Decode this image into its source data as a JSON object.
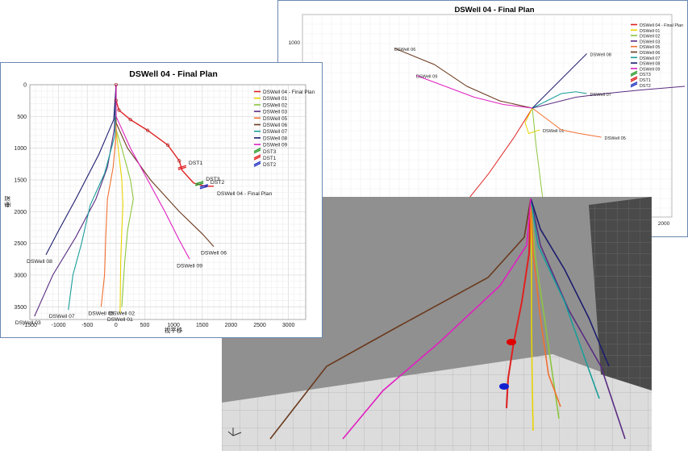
{
  "chart_data": [
    {
      "type": "line",
      "view": "vertical-section",
      "title": "DSWell 04 - Final Plan",
      "xlabel": "视平移",
      "ylabel": "垂深",
      "xticks": [
        "-1500",
        "-1000",
        "-500",
        "0",
        "500",
        "1000",
        "1500",
        "2000",
        "2500",
        "3000"
      ],
      "yticks": [
        "0",
        "500",
        "1000",
        "1500",
        "2000",
        "2500",
        "3000",
        "3500"
      ],
      "xlim": [
        -1500,
        3300
      ],
      "ylim": [
        0,
        3700
      ],
      "y_inverted": true,
      "grid": true,
      "legend_position": "top-right",
      "legend": [
        {
          "label": "DSWell 04 - Final Plan",
          "color": "#e02020",
          "kind": "line"
        },
        {
          "label": "DSWell 01",
          "color": "#e8d400",
          "kind": "line"
        },
        {
          "label": "DSWell 02",
          "color": "#8cc63f",
          "kind": "line"
        },
        {
          "label": "DSWell 03",
          "color": "#5a2d82",
          "kind": "line"
        },
        {
          "label": "DSWell 05",
          "color": "#f07030",
          "kind": "line"
        },
        {
          "label": "DSWell 06",
          "color": "#6b3a1e",
          "kind": "line"
        },
        {
          "label": "DSWell 07",
          "color": "#1a9e9a",
          "kind": "line"
        },
        {
          "label": "DSWell 08",
          "color": "#1c1c6e",
          "kind": "line"
        },
        {
          "label": "DSWell 09",
          "color": "#e020c0",
          "kind": "line"
        },
        {
          "label": "DST3",
          "color": "#2a9a2a",
          "kind": "target"
        },
        {
          "label": "DST1",
          "color": "#e02020",
          "kind": "target"
        },
        {
          "label": "DST2",
          "color": "#2030c0",
          "kind": "target"
        }
      ],
      "series": [
        {
          "name": "DSWell 04 - Final Plan",
          "color": "#e02020",
          "label": "DSWell 04 - Final Plan",
          "points": [
            [
              0,
              0
            ],
            [
              0,
              250
            ],
            [
              50,
              400
            ],
            [
              250,
              550
            ],
            [
              550,
              720
            ],
            [
              900,
              950
            ],
            [
              1100,
              1200
            ],
            [
              1150,
              1350
            ],
            [
              1350,
              1550
            ],
            [
              1550,
              1600
            ],
            [
              1700,
              1600
            ]
          ]
        },
        {
          "name": "DSWell 01",
          "color": "#e8d400",
          "label": "DSWell 01",
          "points": [
            [
              0,
              0
            ],
            [
              0,
              700
            ],
            [
              50,
              1100
            ],
            [
              100,
              1500
            ],
            [
              120,
              1900
            ],
            [
              100,
              2300
            ],
            [
              80,
              2800
            ],
            [
              70,
              3600
            ]
          ]
        },
        {
          "name": "DSWell 02",
          "color": "#8cc63f",
          "label": "DSWell 02",
          "points": [
            [
              0,
              0
            ],
            [
              0,
              700
            ],
            [
              100,
              1000
            ],
            [
              250,
              1500
            ],
            [
              300,
              1800
            ],
            [
              200,
              2300
            ],
            [
              150,
              2800
            ],
            [
              100,
              3500
            ]
          ]
        },
        {
          "name": "DSWell 03",
          "color": "#5a2d82",
          "label": "DSWell 03",
          "points": [
            [
              0,
              0
            ],
            [
              -30,
              700
            ],
            [
              -150,
              1300
            ],
            [
              -350,
              1800
            ],
            [
              -700,
              2400
            ],
            [
              -1100,
              3000
            ],
            [
              -1420,
              3650
            ]
          ]
        },
        {
          "name": "DSWell 05",
          "color": "#f07030",
          "label": "DSWell 05",
          "points": [
            [
              0,
              0
            ],
            [
              0,
              800
            ],
            [
              -50,
              1300
            ],
            [
              -150,
              1800
            ],
            [
              -180,
              2400
            ],
            [
              -200,
              3000
            ],
            [
              -260,
              3500
            ]
          ]
        },
        {
          "name": "DSWell 06",
          "color": "#6b3a1e",
          "label": "DSWell 06",
          "points": [
            [
              0,
              0
            ],
            [
              0,
              600
            ],
            [
              200,
              1000
            ],
            [
              600,
              1500
            ],
            [
              1100,
              2000
            ],
            [
              1500,
              2350
            ],
            [
              1700,
              2550
            ]
          ]
        },
        {
          "name": "DSWell 07",
          "color": "#1a9e9a",
          "label": "DSWell 07",
          "points": [
            [
              0,
              0
            ],
            [
              -20,
              800
            ],
            [
              -200,
              1400
            ],
            [
              -450,
              1900
            ],
            [
              -600,
              2500
            ],
            [
              -750,
              3000
            ],
            [
              -830,
              3550
            ]
          ]
        },
        {
          "name": "DSWell 08",
          "color": "#1c1c6e",
          "label": "DSWell 08",
          "points": [
            [
              0,
              0
            ],
            [
              -40,
              550
            ],
            [
              -300,
              1100
            ],
            [
              -700,
              1800
            ],
            [
              -1000,
              2300
            ],
            [
              -1220,
              2680
            ]
          ]
        },
        {
          "name": "DSWell 09",
          "color": "#e020c0",
          "label": "DSWell 09",
          "points": [
            [
              0,
              0
            ],
            [
              0,
              500
            ],
            [
              250,
              1000
            ],
            [
              550,
              1500
            ],
            [
              850,
              2000
            ],
            [
              1100,
              2450
            ],
            [
              1280,
              2750
            ]
          ]
        }
      ],
      "targets": [
        {
          "name": "DST1",
          "x": 1150,
          "y": 1300,
          "color": "#e02020"
        },
        {
          "name": "DST3",
          "x": 1450,
          "y": 1550,
          "color": "#2a9a2a"
        },
        {
          "name": "DST2",
          "x": 1530,
          "y": 1600,
          "color": "#2030c0"
        }
      ]
    },
    {
      "type": "line",
      "view": "plan",
      "title": "DSWell 04 - Final Plan",
      "yticks": [
        "1000"
      ],
      "xticks": [
        "2000"
      ],
      "grid": true,
      "legend_position": "top-right",
      "legend": [
        {
          "label": "DSWell 04 - Final Plan",
          "color": "#e02020",
          "kind": "line"
        },
        {
          "label": "DSWell 01",
          "color": "#e8d400",
          "kind": "line"
        },
        {
          "label": "DSWell 02",
          "color": "#8cc63f",
          "kind": "line"
        },
        {
          "label": "DSWell 03",
          "color": "#5a2d82",
          "kind": "line"
        },
        {
          "label": "DSWell 05",
          "color": "#f07030",
          "kind": "line"
        },
        {
          "label": "DSWell 06",
          "color": "#6b3a1e",
          "kind": "line"
        },
        {
          "label": "DSWell 07",
          "color": "#1a9e9a",
          "kind": "line"
        },
        {
          "label": "DSWell 08",
          "color": "#1c1c6e",
          "kind": "line"
        },
        {
          "label": "DSWell 09",
          "color": "#e020c0",
          "kind": "line"
        },
        {
          "label": "DST3",
          "color": "#2a9a2a",
          "kind": "target"
        },
        {
          "label": "DST1",
          "color": "#e02020",
          "kind": "target"
        },
        {
          "label": "DST2",
          "color": "#2030c0",
          "kind": "target"
        }
      ],
      "series": [
        {
          "name": "DSWell 04 - Final Plan",
          "color": "#e02020",
          "label": "DSWell 04 - Final Plan",
          "points": [
            [
              0,
              0
            ],
            [
              -50,
              -80
            ],
            [
              -120,
              -180
            ],
            [
              -200,
              -280
            ],
            [
              -280,
              -370
            ],
            [
              -370,
              -460
            ],
            [
              -440,
              -520
            ]
          ]
        },
        {
          "name": "DSWell 01",
          "color": "#e8d400",
          "label": "DSWell 01",
          "points": [
            [
              0,
              0
            ],
            [
              -20,
              -40
            ],
            [
              -10,
              -70
            ],
            [
              20,
              -60
            ]
          ]
        },
        {
          "name": "DSWell 02",
          "color": "#8cc63f",
          "label": "DSWell 02",
          "points": [
            [
              0,
              0
            ],
            [
              10,
              -100
            ],
            [
              30,
              -260
            ],
            [
              70,
              -400
            ],
            [
              150,
              -500
            ],
            [
              240,
              -580
            ]
          ]
        },
        {
          "name": "DSWell 03",
          "color": "#5a2d82",
          "label": "DSWell 03",
          "points": [
            [
              0,
              0
            ],
            [
              120,
              30
            ],
            [
              200,
              40
            ],
            [
              300,
              50
            ],
            [
              420,
              60
            ]
          ]
        },
        {
          "name": "DSWell 05",
          "color": "#f07030",
          "label": "DSWell 05",
          "points": [
            [
              0,
              0
            ],
            [
              40,
              -30
            ],
            [
              80,
              -60
            ],
            [
              130,
              -70
            ],
            [
              190,
              -80
            ]
          ]
        },
        {
          "name": "DSWell 06",
          "color": "#6b3a1e",
          "label": "DSWell 06",
          "points": [
            [
              0,
              0
            ],
            [
              -90,
              20
            ],
            [
              -180,
              60
            ],
            [
              -270,
              120
            ],
            [
              -380,
              165
            ]
          ]
        },
        {
          "name": "DSWell 07",
          "color": "#1a9e9a",
          "label": "DSWell 07",
          "points": [
            [
              0,
              0
            ],
            [
              40,
              20
            ],
            [
              80,
              40
            ],
            [
              120,
              45
            ],
            [
              150,
              40
            ]
          ]
        },
        {
          "name": "DSWell 08",
          "color": "#1c1c6e",
          "label": "DSWell 08",
          "points": [
            [
              0,
              0
            ],
            [
              20,
              20
            ],
            [
              60,
              60
            ],
            [
              110,
              110
            ],
            [
              150,
              150
            ]
          ]
        },
        {
          "name": "DSWell 09",
          "color": "#e020c0",
          "label": "DSWell 09",
          "points": [
            [
              0,
              0
            ],
            [
              -80,
              10
            ],
            [
              -160,
              30
            ],
            [
              -240,
              60
            ],
            [
              -320,
              90
            ]
          ]
        }
      ],
      "targets": [
        {
          "name": "DST1",
          "x": -290,
          "y": -380,
          "color": "#e02020"
        },
        {
          "name": "DST2",
          "x": -370,
          "y": -460,
          "color": "#2030c0"
        },
        {
          "name": "DST3",
          "x": -440,
          "y": -520,
          "color": "#2a9a2a"
        }
      ]
    }
  ]
}
